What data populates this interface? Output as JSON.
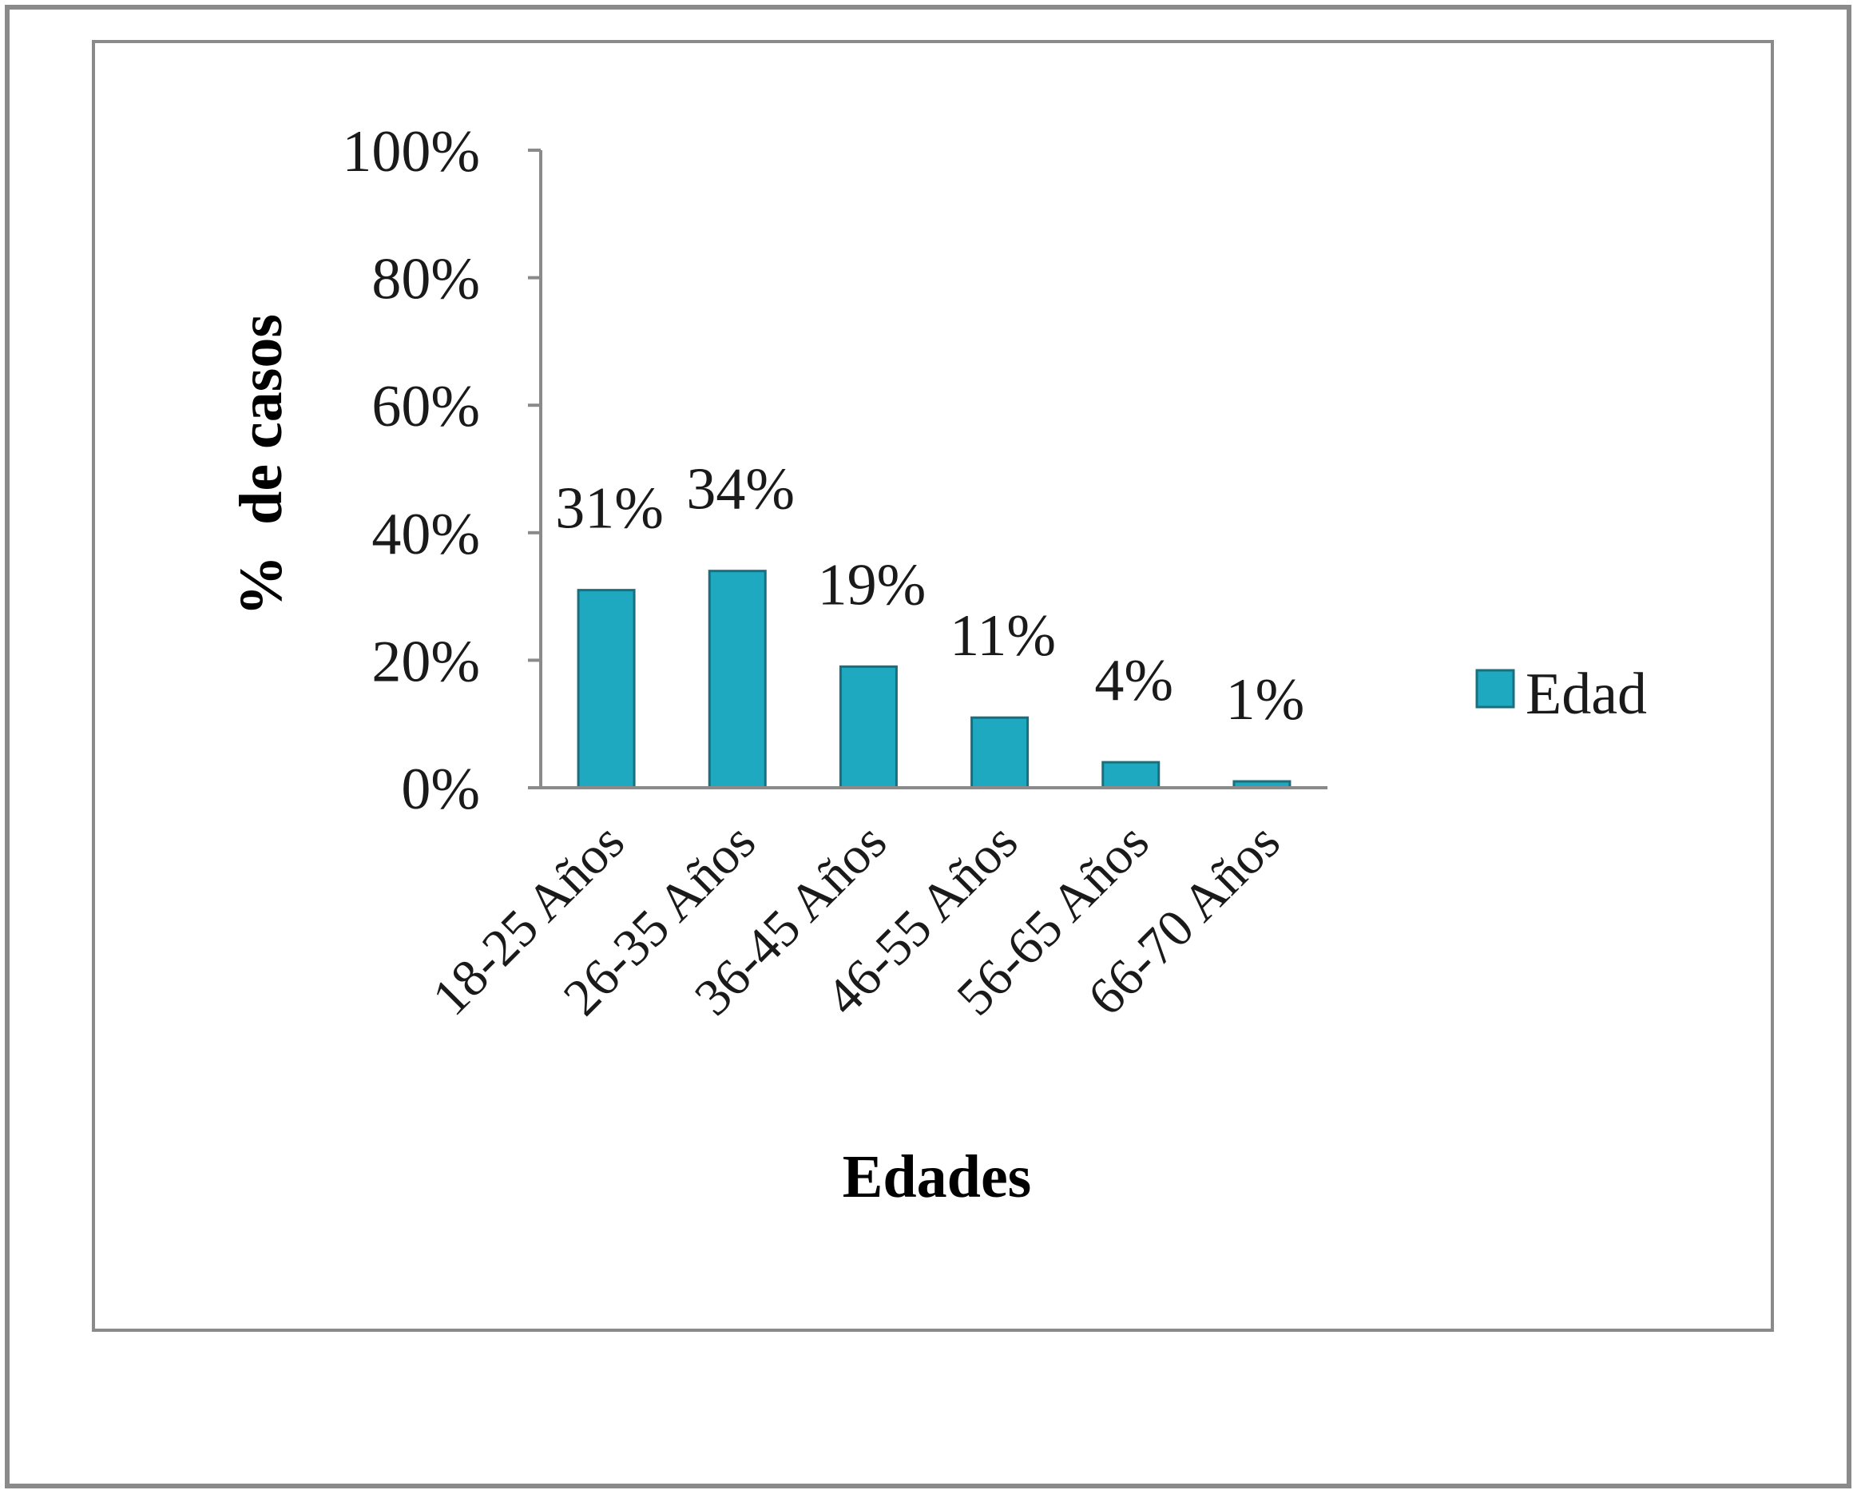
{
  "chart_data": {
    "type": "bar",
    "categories": [
      "18-25 Años",
      "26-35 Años",
      "36-45 Años",
      "46-55 Años",
      "56-65 Años",
      "66-70 Años"
    ],
    "series": [
      {
        "name": "Edad",
        "values": [
          31,
          34,
          19,
          11,
          4,
          1
        ],
        "color": "#1fa9c0"
      }
    ],
    "data_labels": [
      "31%",
      "34%",
      "19%",
      "11%",
      "4%",
      "1%"
    ],
    "y_ticks": [
      "0%",
      "20%",
      "40%",
      "60%",
      "80%",
      "100%"
    ],
    "ylim": [
      0,
      100
    ],
    "xlabel": "Edades",
    "ylabel": "%  de casos",
    "legend_position": "right",
    "grid": false
  }
}
